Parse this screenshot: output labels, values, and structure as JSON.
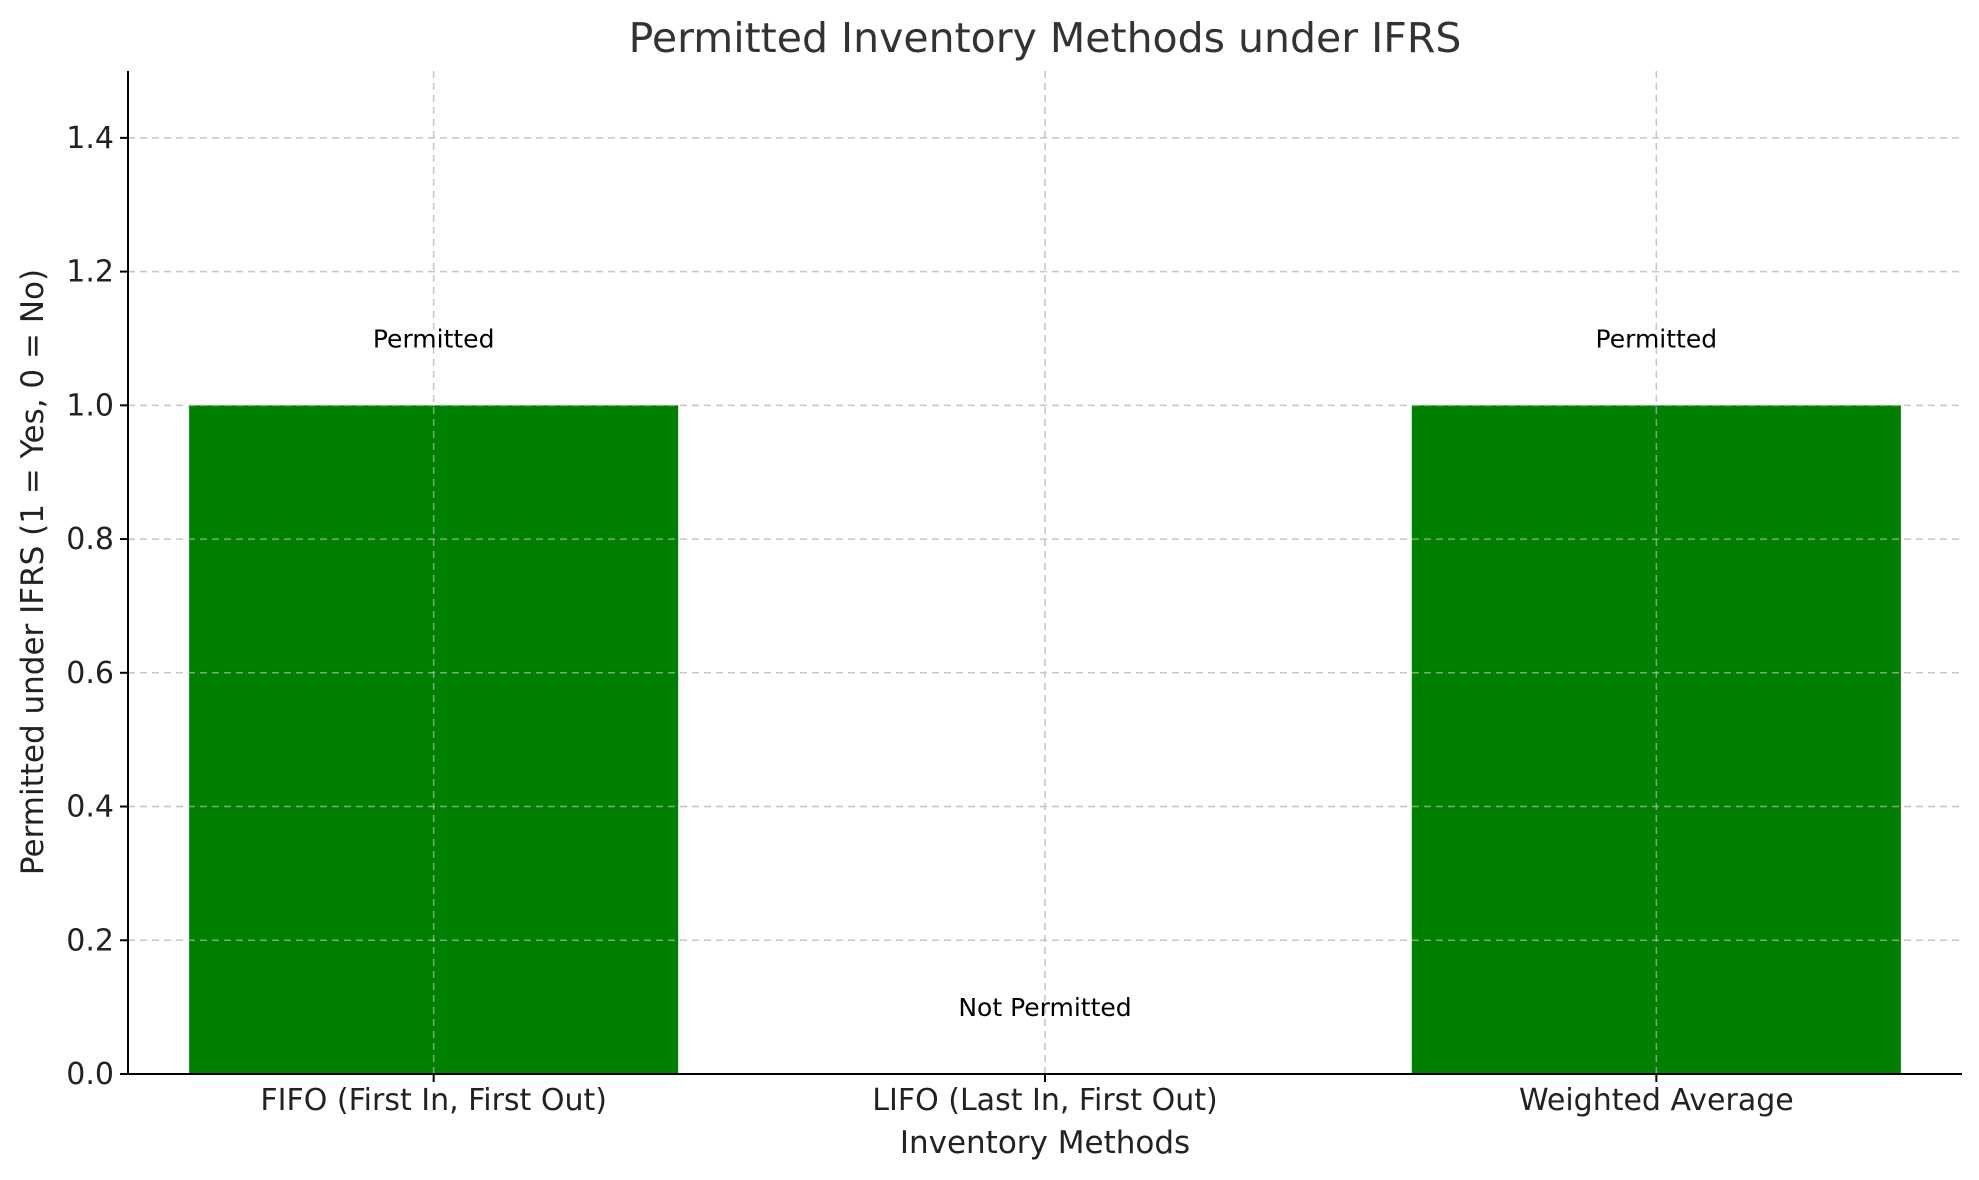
{
  "chart_data": {
    "type": "bar",
    "title": "Permitted Inventory Methods under IFRS",
    "xlabel": "Inventory Methods",
    "ylabel": "Permitted under IFRS (1 = Yes, 0 = No)",
    "categories": [
      "FIFO (First In, First Out)",
      "LIFO (Last In, First Out)",
      "Weighted Average"
    ],
    "values": [
      1,
      0,
      1
    ],
    "data_labels": [
      "Permitted",
      "Not Permitted",
      "Permitted"
    ],
    "ylim": [
      0,
      1.5
    ],
    "yticks": [
      "0.0",
      "0.2",
      "0.4",
      "0.6",
      "0.8",
      "1.0",
      "1.2",
      "1.4"
    ],
    "grid": true,
    "bar_color": "#008000",
    "legend": "none"
  }
}
